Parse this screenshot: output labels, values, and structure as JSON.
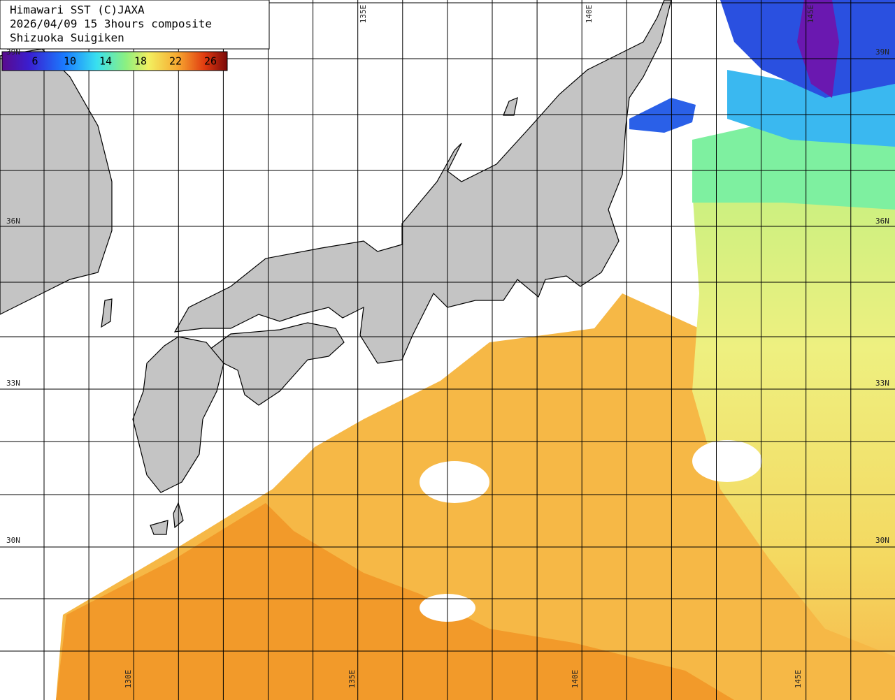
{
  "header": {
    "lines": [
      "Himawari SST (C)JAXA",
      "2026/04/09 15 3hours composite",
      "Shizuoka Suigiken"
    ]
  },
  "colorbar": {
    "labels": [
      "6",
      "10",
      "14",
      "18",
      "22",
      "26"
    ]
  },
  "lat_labels": [
    "39N",
    "36N",
    "33N",
    "30N"
  ],
  "lon_labels_top": [
    "135E",
    "140E",
    "145E"
  ],
  "lon_labels_bottom": [
    "130E",
    "135E",
    "140E",
    "145E"
  ]
}
